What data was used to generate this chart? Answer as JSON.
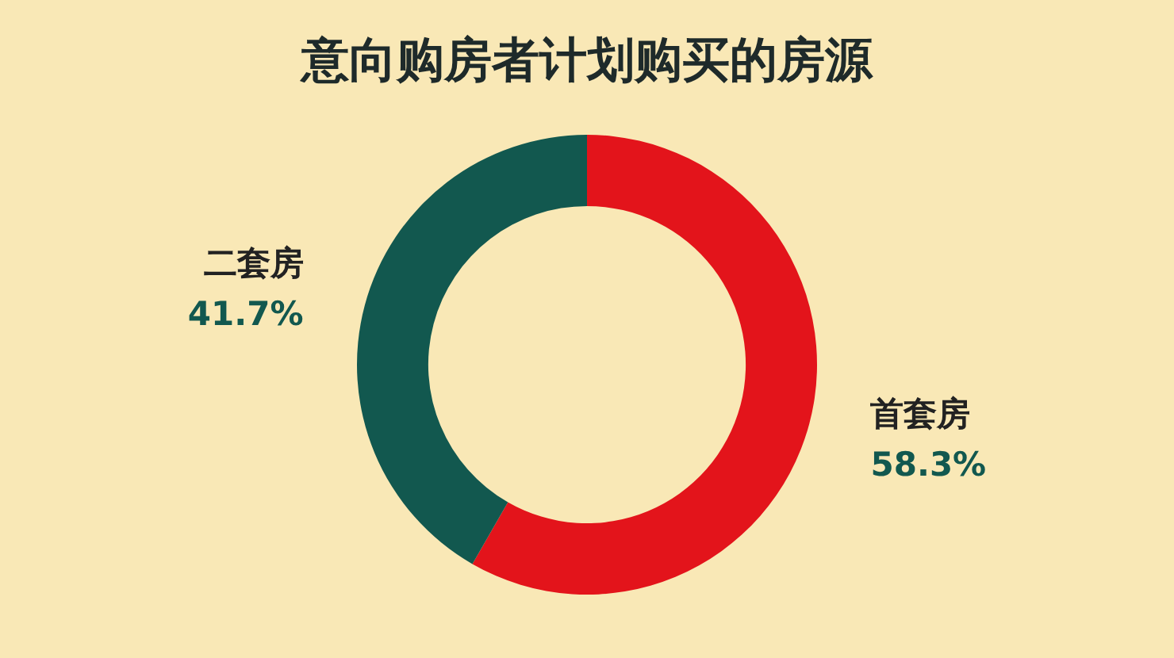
{
  "chart_data": {
    "type": "donut",
    "title": "意向购房者计划购买的房源",
    "categories": [
      "首套房",
      "二套房"
    ],
    "values": [
      58.3,
      41.7
    ],
    "colors": [
      "#e3141b",
      "#12584f"
    ],
    "value_labels": [
      "58.3%",
      "41.7%"
    ],
    "legend": false
  }
}
